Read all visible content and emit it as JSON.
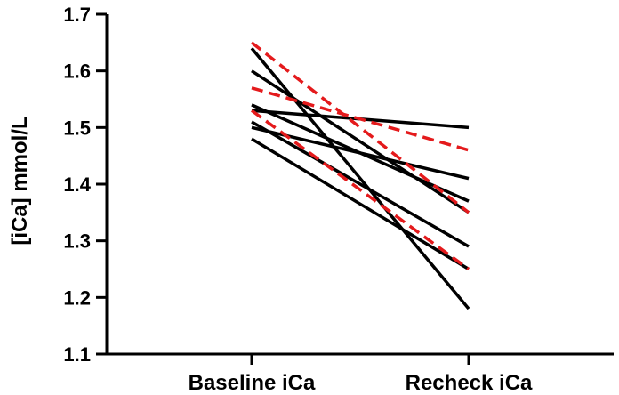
{
  "chart_data": {
    "type": "line",
    "title": "",
    "xlabel": "",
    "ylabel": "[iCa] mmol/L",
    "categories": [
      "Baseline iCa",
      "Recheck iCa"
    ],
    "ylim": [
      1.1,
      1.7
    ],
    "yticks": [
      "1.1",
      "1.2",
      "1.3",
      "1.4",
      "1.5",
      "1.6",
      "1.7"
    ],
    "grid": false,
    "legend": "none",
    "colors": {
      "solid": "#000000",
      "dashed": "#e41a1c"
    },
    "series": [
      {
        "values": [
          1.64,
          1.18
        ],
        "style": "solid"
      },
      {
        "values": [
          1.6,
          1.35
        ],
        "style": "solid"
      },
      {
        "values": [
          1.54,
          1.37
        ],
        "style": "solid"
      },
      {
        "values": [
          1.53,
          1.5
        ],
        "style": "solid"
      },
      {
        "values": [
          1.51,
          1.29
        ],
        "style": "solid"
      },
      {
        "values": [
          1.5,
          1.41
        ],
        "style": "solid"
      },
      {
        "values": [
          1.48,
          1.25
        ],
        "style": "solid"
      },
      {
        "values": [
          1.65,
          1.35
        ],
        "style": "dashed"
      },
      {
        "values": [
          1.57,
          1.46
        ],
        "style": "dashed"
      },
      {
        "values": [
          1.53,
          1.25
        ],
        "style": "dashed"
      }
    ]
  }
}
